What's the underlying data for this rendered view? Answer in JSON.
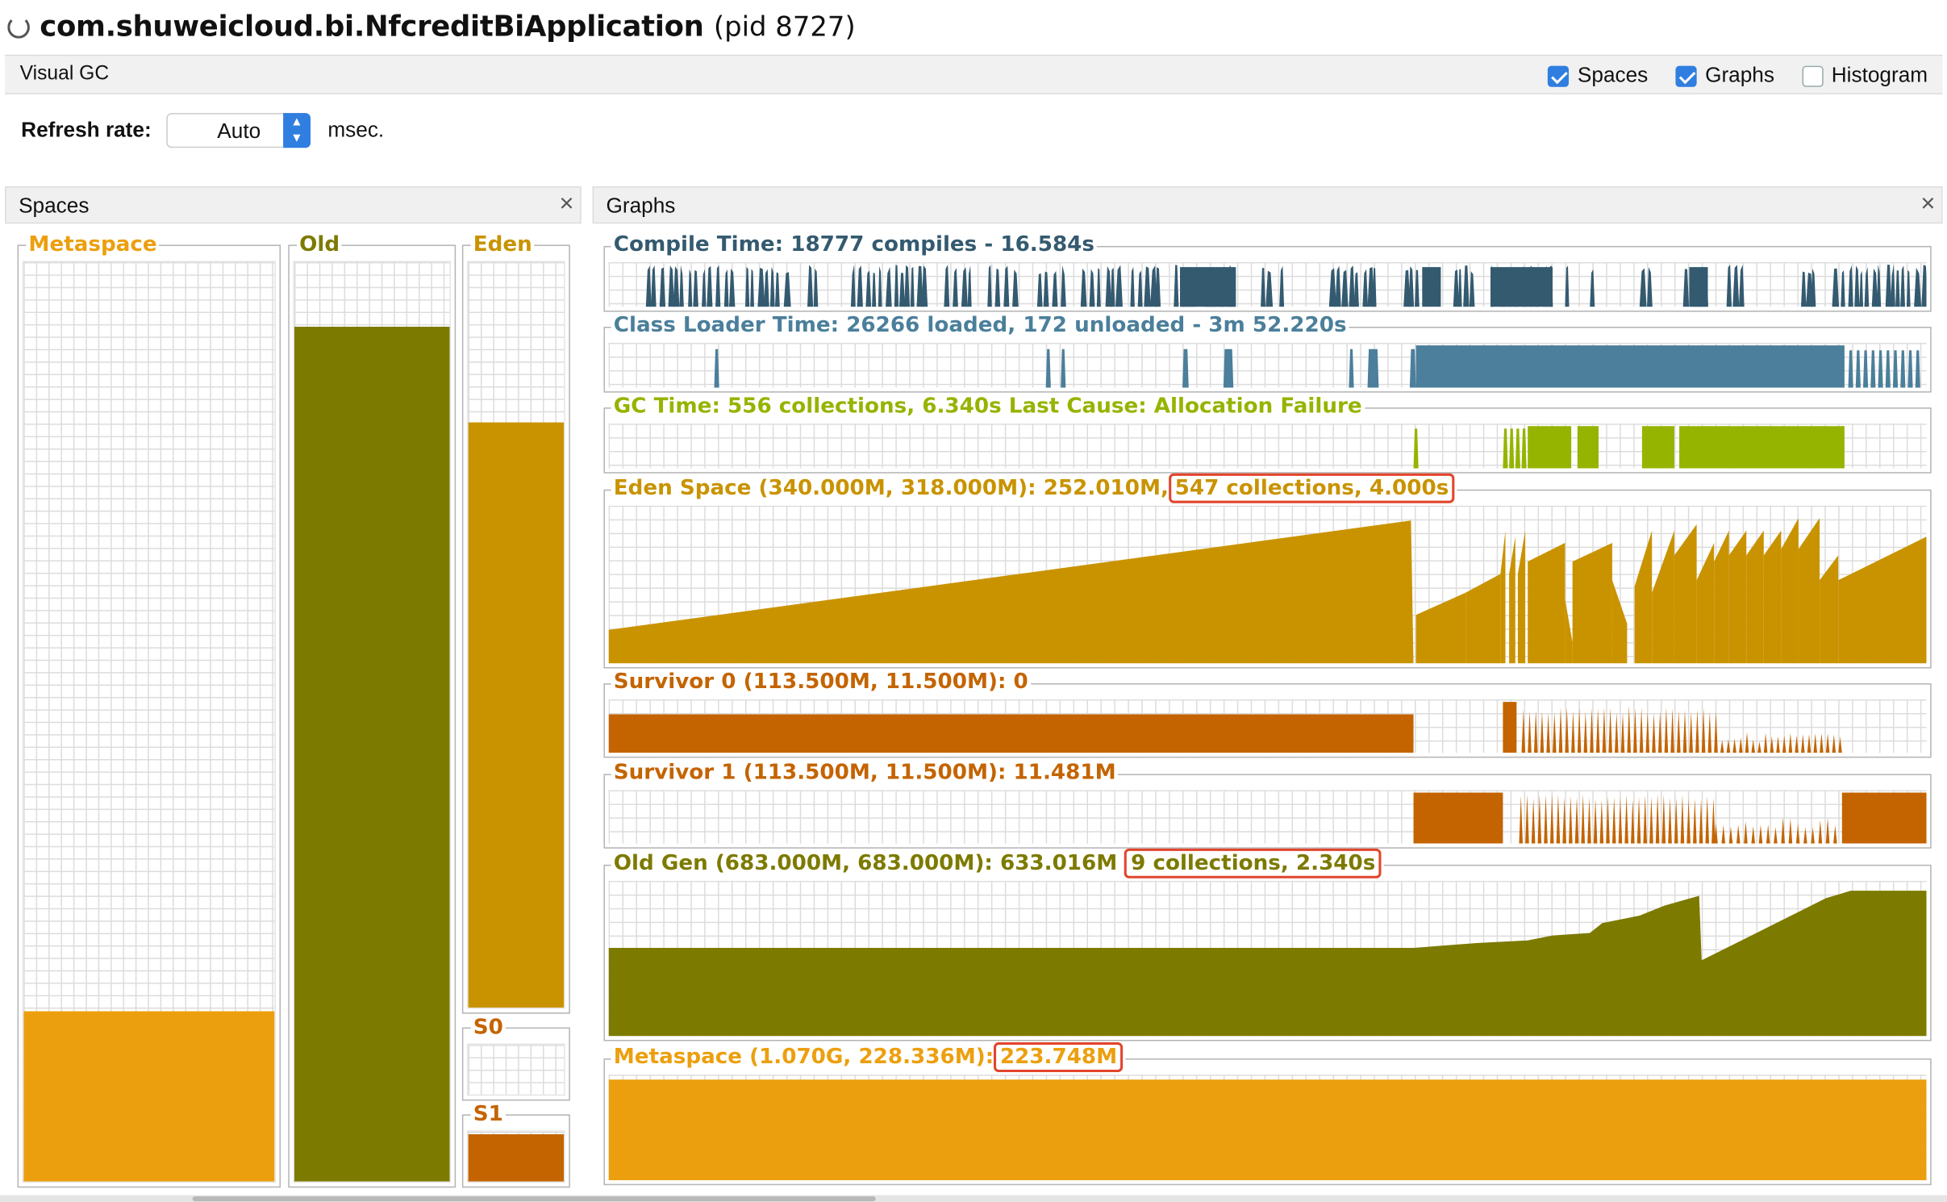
{
  "window": {
    "title": "com.shuweicloud.bi.NfcreditBiApplication",
    "pid": "(pid 8727)",
    "tab": "Visual GC"
  },
  "options": {
    "spaces": {
      "label": "Spaces",
      "checked": true
    },
    "graphs": {
      "label": "Graphs",
      "checked": true
    },
    "histogram": {
      "label": "Histogram",
      "checked": false
    }
  },
  "refresh": {
    "label": "Refresh rate:",
    "value": "Auto",
    "unit": "msec."
  },
  "spaces_panel": {
    "title": "Spaces",
    "columns": {
      "metaspace": {
        "label": "Metaspace",
        "fill": 0.185,
        "color": "#ec9f0e"
      },
      "old": {
        "label": "Old",
        "fill": 0.93,
        "color": "#7d7a00"
      },
      "eden": {
        "label": "Eden",
        "fill": 0.785,
        "color": "#c99300"
      },
      "s0": {
        "label": "S0",
        "fill": 0.0,
        "color": "#c46400"
      },
      "s1": {
        "label": "S1",
        "fill": 0.96,
        "color": "#c46400"
      }
    }
  },
  "graphs_panel": {
    "title": "Graphs",
    "compile": {
      "label": "Compile Time: 18777 compiles - 16.584s",
      "color": "#345a70"
    },
    "classloader": {
      "label": "Class Loader Time: 26266 loaded, 172 unloaded - 3m 52.220s",
      "color": "#4b7f9b"
    },
    "gc": {
      "label": "GC Time: 556 collections, 6.340s  Last Cause: Allocation Failure",
      "color": "#95b400"
    },
    "eden": {
      "label_main": "Eden Space (340.000M, 318.000M): 252.010M,",
      "label_hl": "547 collections, 4.000s",
      "color": "#c99300"
    },
    "s0": {
      "label": "Survivor 0 (113.500M, 11.500M): 0",
      "color": "#c46400"
    },
    "s1": {
      "label": "Survivor 1 (113.500M, 11.500M): 11.481M",
      "color": "#c46400"
    },
    "oldgen": {
      "label_main": "Old Gen (683.000M, 683.000M): 633.016M",
      "label_hl": "9 collections, 2.340s",
      "color": "#7d7a00"
    },
    "metaspace": {
      "label_main": "Metaspace (1.070G, 228.336M):",
      "label_hl": "223.748M",
      "color": "#ec9f0e"
    }
  },
  "icons": {
    "close": "close-icon",
    "spinner": "loading-spinner-icon"
  }
}
